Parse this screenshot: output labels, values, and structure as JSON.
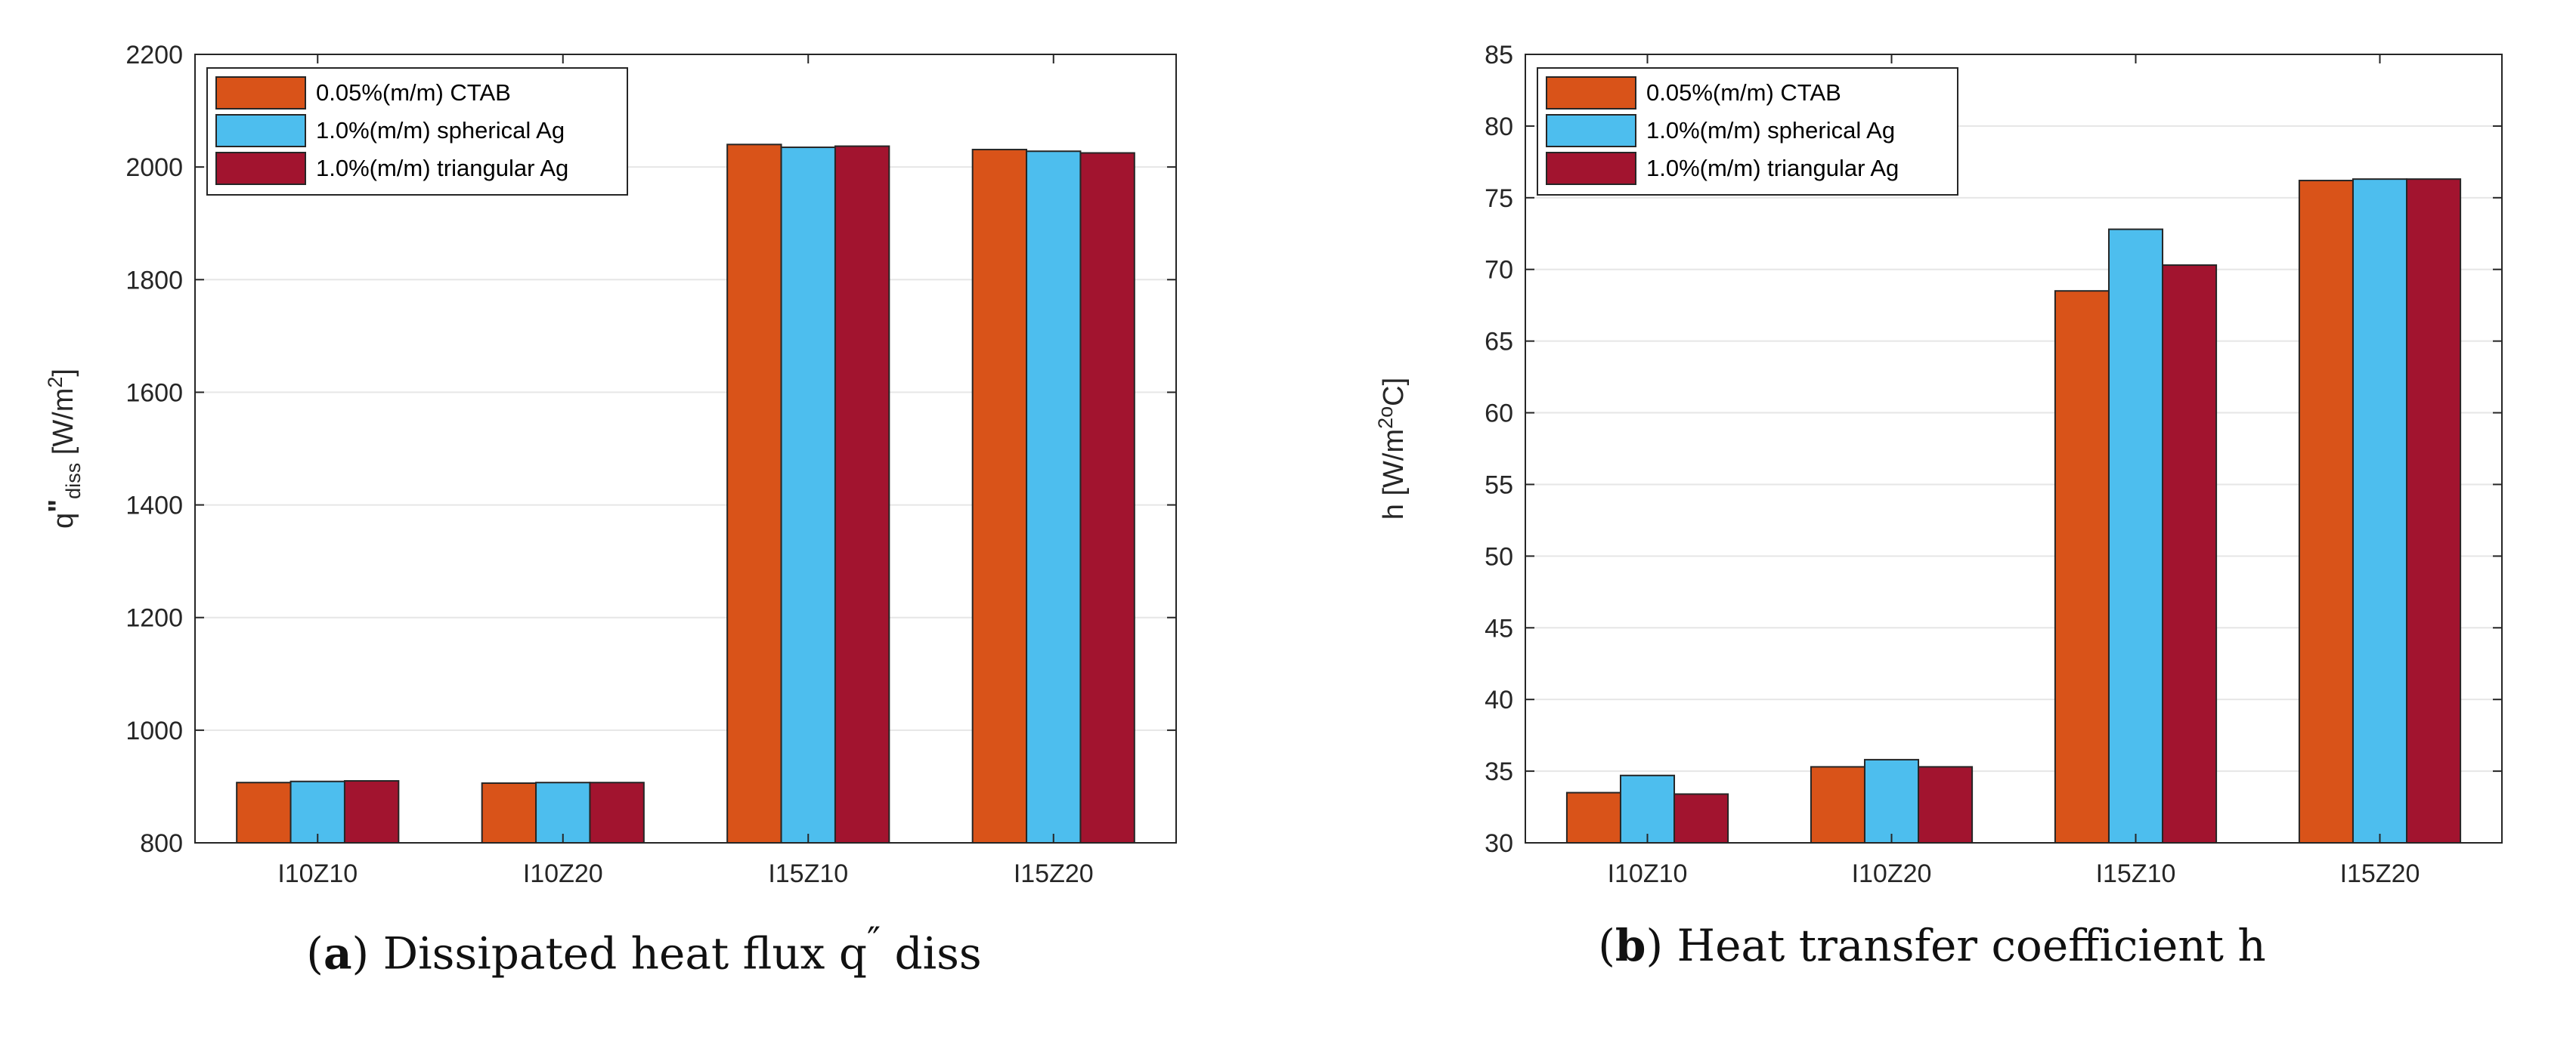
{
  "chart_data": [
    {
      "type": "bar",
      "id": "a",
      "categories": [
        "I10Z10",
        "I10Z20",
        "I15Z10",
        "I15Z20"
      ],
      "series": [
        {
          "name": "0.05%(m/m) CTAB",
          "color": "#D95319",
          "values": [
            907,
            906,
            2040,
            2031
          ]
        },
        {
          "name": "1.0%(m/m) spherical Ag",
          "color": "#4DBEEE",
          "values": [
            909,
            907,
            2035,
            2028
          ]
        },
        {
          "name": "1.0%(m/m) triangular Ag",
          "color": "#A2142F",
          "values": [
            910,
            907,
            2037,
            2025
          ]
        }
      ],
      "ylim": [
        800,
        2200
      ],
      "yticks": [
        800,
        1000,
        1200,
        1400,
        1600,
        1800,
        2000,
        2200
      ],
      "ylabel": {
        "main": "q",
        "primes": "\"",
        "sub": "diss",
        "unit_open": " [W/m",
        "sup": "2",
        "unit_close": "]"
      },
      "grid": true,
      "legend": "top-left",
      "caption": {
        "tag": "a",
        "text": "Dissipated heat flux q",
        "sup": "″",
        "text2": " diss"
      }
    },
    {
      "type": "bar",
      "id": "b",
      "categories": [
        "I10Z10",
        "I10Z20",
        "I15Z10",
        "I15Z20"
      ],
      "series": [
        {
          "name": "0.05%(m/m) CTAB",
          "color": "#D95319",
          "values": [
            33.5,
            35.3,
            68.5,
            76.2
          ]
        },
        {
          "name": "1.0%(m/m) spherical Ag",
          "color": "#4DBEEE",
          "values": [
            34.7,
            35.8,
            72.8,
            76.3
          ]
        },
        {
          "name": "1.0%(m/m) triangular Ag",
          "color": "#A2142F",
          "values": [
            33.4,
            35.3,
            70.3,
            76.3
          ]
        }
      ],
      "ylim": [
        30,
        85
      ],
      "yticks": [
        30,
        35,
        40,
        45,
        50,
        55,
        60,
        65,
        70,
        75,
        80,
        85
      ],
      "ylabel": {
        "main": "h [W/m",
        "sup": "2o",
        "unit_close": "C]"
      },
      "grid": true,
      "legend": "top-left",
      "caption": {
        "tag": "b",
        "text": "Heat transfer coefficient h"
      }
    }
  ]
}
